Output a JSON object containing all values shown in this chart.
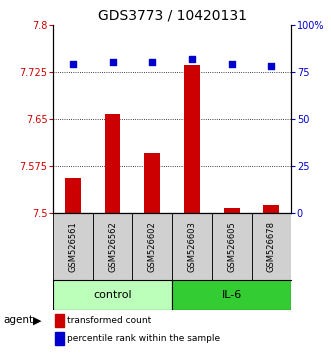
{
  "title": "GDS3773 / 10420131",
  "samples": [
    "GSM526561",
    "GSM526562",
    "GSM526602",
    "GSM526603",
    "GSM526605",
    "GSM526678"
  ],
  "bar_values": [
    7.555,
    7.658,
    7.595,
    7.735,
    7.508,
    7.513
  ],
  "percentile_values": [
    79,
    80,
    80,
    82,
    79,
    78
  ],
  "ylim_left": [
    7.5,
    7.8
  ],
  "ylim_right": [
    0,
    100
  ],
  "yticks_left": [
    7.5,
    7.575,
    7.65,
    7.725,
    7.8
  ],
  "ytick_labels_left": [
    "7.5",
    "7.575",
    "7.65",
    "7.725",
    "7.8"
  ],
  "yticks_right": [
    0,
    25,
    50,
    75,
    100
  ],
  "ytick_labels_right": [
    "0",
    "25",
    "50",
    "75",
    "100%"
  ],
  "grid_yticks": [
    7.575,
    7.65,
    7.725
  ],
  "bar_color": "#cc0000",
  "percentile_color": "#0000cc",
  "control_label": "control",
  "il6_label": "IL-6",
  "agent_label": "agent",
  "control_color": "#bbffbb",
  "il6_color": "#33cc33",
  "sample_bg_color": "#d0d0d0",
  "legend_bar_label": "transformed count",
  "legend_pct_label": "percentile rank within the sample",
  "title_fontsize": 10,
  "tick_fontsize": 7,
  "bar_width": 0.4
}
